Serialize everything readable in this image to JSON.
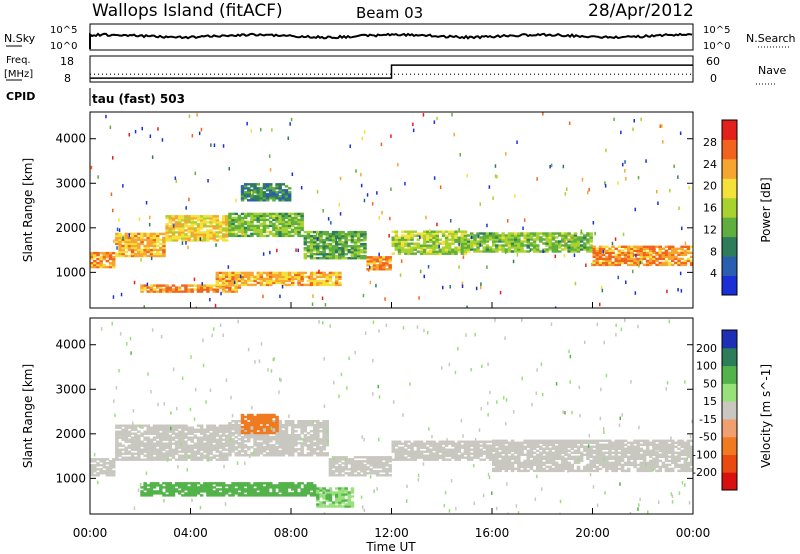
{
  "header": {
    "station": "Wallops Island (fitACF)",
    "beam": "Beam 03",
    "date": "28/Apr/2012"
  },
  "strip_nsky": {
    "left_label": "N.Sky",
    "right_label": "N.Search",
    "left_ticks": [
      "10^5",
      "10^0"
    ],
    "right_ticks": [
      "10^5",
      "10^0"
    ]
  },
  "strip_freq": {
    "left_label_1": "Freq.",
    "left_label_2": "[MHz]",
    "right_label": "Nave",
    "left_ticks": [
      "18",
      "8"
    ],
    "right_ticks": [
      "60",
      "0"
    ],
    "freq_steps": [
      {
        "x": 0,
        "v": 9.5
      },
      {
        "x": 12,
        "v": 9.5
      },
      {
        "x": 12,
        "v": 14.5
      },
      {
        "x": 24,
        "v": 14.5
      }
    ],
    "nave_level": 18
  },
  "cpid": {
    "label": "CPID",
    "value": "tau (fast) 503"
  },
  "colors": {
    "power_scale": [
      "#1a2fd6",
      "#2a5fb0",
      "#2e7d5a",
      "#5fae3e",
      "#a8d230",
      "#f4e23a",
      "#f7a531",
      "#f2641e",
      "#e3201b"
    ],
    "velocity_scale": [
      "#1d2fb5",
      "#2e7d5a",
      "#53b34a",
      "#98e07a",
      "#c8c8c0",
      "#f0a070",
      "#f07a20",
      "#e84a10",
      "#d81010"
    ]
  },
  "chart_data": [
    {
      "type": "heatmap",
      "name": "Power",
      "title": "",
      "xlabel": "",
      "ylabel": "Slant Range [km]",
      "xlim": [
        0,
        24
      ],
      "ylim": [
        200,
        4600
      ],
      "yticks": [
        "1000",
        "2000",
        "3000",
        "4000"
      ],
      "colorbar": {
        "label": "Power [dB]",
        "ticks": [
          "4",
          "8",
          "12",
          "16",
          "20",
          "24",
          "28"
        ],
        "range": [
          0,
          32
        ]
      },
      "bands": [
        {
          "x0": 0,
          "x1": 1.0,
          "r0": 1100,
          "r1": 1450,
          "v": 24
        },
        {
          "x0": 1.0,
          "x1": 3.0,
          "r0": 1350,
          "r1": 1850,
          "v": 22
        },
        {
          "x0": 3.0,
          "x1": 5.5,
          "r0": 1700,
          "r1": 2250,
          "v": 20
        },
        {
          "x0": 5.5,
          "x1": 8.5,
          "r0": 1800,
          "r1": 2300,
          "v": 14
        },
        {
          "x0": 8.5,
          "x1": 11.0,
          "r0": 1300,
          "r1": 1900,
          "v": 12
        },
        {
          "x0": 11.0,
          "x1": 12.0,
          "r0": 1050,
          "r1": 1350,
          "v": 24
        },
        {
          "x0": 2.0,
          "x1": 6.0,
          "r0": 550,
          "r1": 700,
          "v": 24
        },
        {
          "x0": 5.0,
          "x1": 10.0,
          "r0": 700,
          "r1": 1000,
          "v": 22
        },
        {
          "x0": 6.0,
          "x1": 8.0,
          "r0": 2600,
          "r1": 3000,
          "v": 9
        },
        {
          "x0": 12.0,
          "x1": 15.0,
          "r0": 1400,
          "r1": 1900,
          "v": 16
        },
        {
          "x0": 15.0,
          "x1": 20.0,
          "r0": 1450,
          "r1": 1900,
          "v": 14
        },
        {
          "x0": 20.0,
          "x1": 24.0,
          "r0": 1150,
          "r1": 1600,
          "v": 24
        }
      ]
    },
    {
      "type": "heatmap",
      "name": "Velocity",
      "title": "",
      "xlabel": "Time UT",
      "ylabel": "Slant Range [km]",
      "xlim": [
        0,
        24
      ],
      "ylim": [
        200,
        4600
      ],
      "xticks": [
        "00:00",
        "04:00",
        "08:00",
        "12:00",
        "16:00",
        "20:00",
        "00:00"
      ],
      "yticks": [
        "1000",
        "2000",
        "3000",
        "4000"
      ],
      "colorbar": {
        "label": "Velocity [m s^-1]",
        "ticks": [
          "200",
          "100",
          "50",
          "15",
          "-15",
          "-50",
          "-100",
          "-200"
        ]
      },
      "bands": [
        {
          "x0": 0,
          "x1": 1.0,
          "r0": 1050,
          "r1": 1450,
          "v": 0
        },
        {
          "x0": 1.0,
          "x1": 5.5,
          "r0": 1400,
          "r1": 2200,
          "v": 0
        },
        {
          "x0": 5.5,
          "x1": 9.5,
          "r0": 1500,
          "r1": 2300,
          "v": 0
        },
        {
          "x0": 9.5,
          "x1": 12.0,
          "r0": 1050,
          "r1": 1500,
          "v": 0
        },
        {
          "x0": 6.0,
          "x1": 7.5,
          "r0": 2000,
          "r1": 2450,
          "v": -60
        },
        {
          "x0": 2.0,
          "x1": 9.0,
          "r0": 600,
          "r1": 900,
          "v": 40
        },
        {
          "x0": 9.0,
          "x1": 10.5,
          "r0": 350,
          "r1": 800,
          "v": 30
        },
        {
          "x0": 12.0,
          "x1": 16.0,
          "r0": 1400,
          "r1": 1850,
          "v": 0
        },
        {
          "x0": 16.0,
          "x1": 24.0,
          "r0": 1150,
          "r1": 1850,
          "v": 0
        }
      ]
    }
  ],
  "axis": {
    "time_label": "Time UT",
    "time_ticks": [
      "00:00",
      "04:00",
      "08:00",
      "12:00",
      "16:00",
      "20:00",
      "00:00"
    ]
  }
}
